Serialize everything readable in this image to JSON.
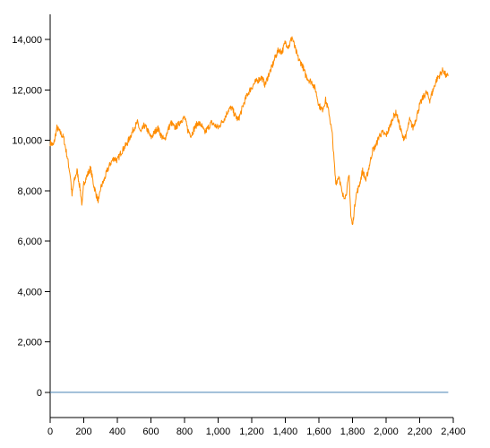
{
  "chart_data": {
    "type": "line",
    "title": "",
    "xlabel": "",
    "ylabel": "",
    "xlim": [
      0,
      2400
    ],
    "ylim": [
      -1000,
      15000
    ],
    "x_ticks": [
      "0",
      "200",
      "400",
      "600",
      "800",
      "1,000",
      "1,200",
      "1,400",
      "1,600",
      "1,800",
      "2,000",
      "2,200",
      "2,400"
    ],
    "x_tick_values": [
      0,
      200,
      400,
      600,
      800,
      1000,
      1200,
      1400,
      1600,
      1800,
      2000,
      2200,
      2400
    ],
    "y_ticks": [
      "0",
      "2,000",
      "4,000",
      "6,000",
      "8,000",
      "10,000",
      "12,000",
      "14,000"
    ],
    "y_tick_values": [
      0,
      2000,
      4000,
      6000,
      8000,
      10000,
      12000,
      14000
    ],
    "grid": false,
    "series": [
      {
        "color": "#ff8c00",
        "x": [
          0,
          20,
          40,
          60,
          80,
          100,
          120,
          130,
          140,
          160,
          180,
          190,
          200,
          220,
          240,
          260,
          280,
          290,
          300,
          320,
          340,
          360,
          380,
          400,
          420,
          440,
          460,
          480,
          500,
          520,
          540,
          560,
          580,
          600,
          620,
          640,
          660,
          680,
          700,
          720,
          740,
          760,
          780,
          800,
          820,
          840,
          860,
          880,
          900,
          920,
          940,
          960,
          980,
          1000,
          1020,
          1040,
          1060,
          1080,
          1100,
          1120,
          1140,
          1160,
          1180,
          1200,
          1220,
          1240,
          1260,
          1280,
          1300,
          1320,
          1340,
          1360,
          1380,
          1400,
          1420,
          1440,
          1460,
          1480,
          1500,
          1520,
          1540,
          1560,
          1580,
          1600,
          1620,
          1640,
          1660,
          1680,
          1690,
          1700,
          1720,
          1740,
          1760,
          1780,
          1790,
          1800,
          1820,
          1840,
          1860,
          1880,
          1900,
          1920,
          1940,
          1960,
          1980,
          2000,
          2020,
          2040,
          2060,
          2080,
          2100,
          2120,
          2140,
          2160,
          2180,
          2200,
          2220,
          2240,
          2260,
          2280,
          2300,
          2320,
          2340,
          2360,
          2370
        ],
        "y": [
          9900,
          9800,
          10500,
          10300,
          10100,
          9400,
          8600,
          7800,
          8300,
          8800,
          8000,
          7400,
          8300,
          8600,
          8900,
          8200,
          7700,
          7600,
          8100,
          8400,
          8800,
          9100,
          9300,
          9200,
          9500,
          9700,
          9900,
          10200,
          10500,
          10700,
          10300,
          10600,
          10400,
          10100,
          10300,
          10500,
          10200,
          10000,
          10400,
          10700,
          10500,
          10600,
          10800,
          10900,
          10400,
          10200,
          10500,
          10700,
          10600,
          10300,
          10500,
          10700,
          10600,
          10500,
          10700,
          10900,
          11200,
          11300,
          11000,
          10800,
          11200,
          11600,
          11900,
          12100,
          12300,
          12400,
          12500,
          12200,
          12600,
          12900,
          13300,
          13600,
          13500,
          13900,
          13700,
          14100,
          13600,
          13200,
          13000,
          12600,
          12400,
          12300,
          12000,
          11400,
          11200,
          11600,
          11100,
          10200,
          9200,
          8300,
          8600,
          7800,
          7800,
          8600,
          7000,
          6600,
          7800,
          8200,
          8800,
          8400,
          9000,
          9600,
          9800,
          10200,
          10300,
          10200,
          10500,
          10900,
          11100,
          10600,
          10100,
          10200,
          10800,
          10500,
          10900,
          11400,
          11700,
          11900,
          11600,
          12000,
          12400,
          12600,
          12800,
          12500,
          12600
        ]
      },
      {
        "color": "#4682b4",
        "x": [
          0,
          2370
        ],
        "y": [
          0,
          0
        ]
      }
    ]
  }
}
